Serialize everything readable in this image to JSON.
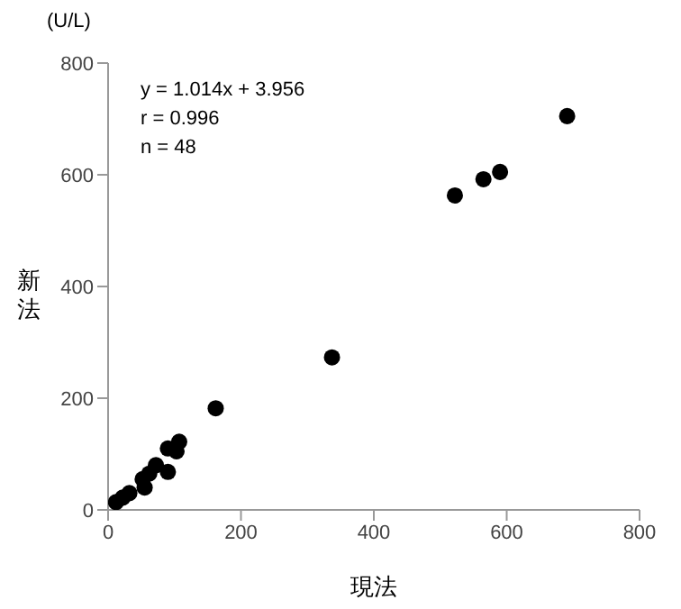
{
  "chart_data": {
    "type": "scatter",
    "xlabel": "現法",
    "ylabel": "新法",
    "annotations": [
      "(U/L)",
      "y = 1.014x + 3.956",
      "r = 0.996",
      "n = 48"
    ],
    "x": [
      691,
      590,
      565,
      522,
      337,
      162,
      107,
      103,
      90,
      90,
      72,
      62,
      52,
      32,
      22,
      12,
      55
    ],
    "series": [
      {
        "color": "#000000",
        "values": [
          705,
          605,
          592,
          563,
          273,
          182,
          122,
          105,
          110,
          68,
          80,
          65,
          55,
          30,
          22,
          14,
          40
        ]
      }
    ],
    "xlim": [
      0,
      800
    ],
    "xticks": [
      0,
      200,
      400,
      600,
      800
    ],
    "ylim": [
      0,
      800
    ],
    "yticks": [
      0,
      200,
      400,
      600,
      800
    ],
    "grid": false,
    "legend": false,
    "marker": "circle"
  }
}
